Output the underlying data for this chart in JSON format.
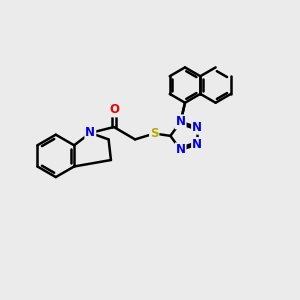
{
  "bg_color": "#ebebeb",
  "bond_color": "#000000",
  "bond_width": 1.8,
  "atom_colors": {
    "N": "#0000ee",
    "O": "#ee0000",
    "S": "#bbaa00",
    "C": "#000000"
  },
  "font_size": 8.5,
  "fig_size": [
    3.0,
    3.0
  ],
  "dpi": 100
}
